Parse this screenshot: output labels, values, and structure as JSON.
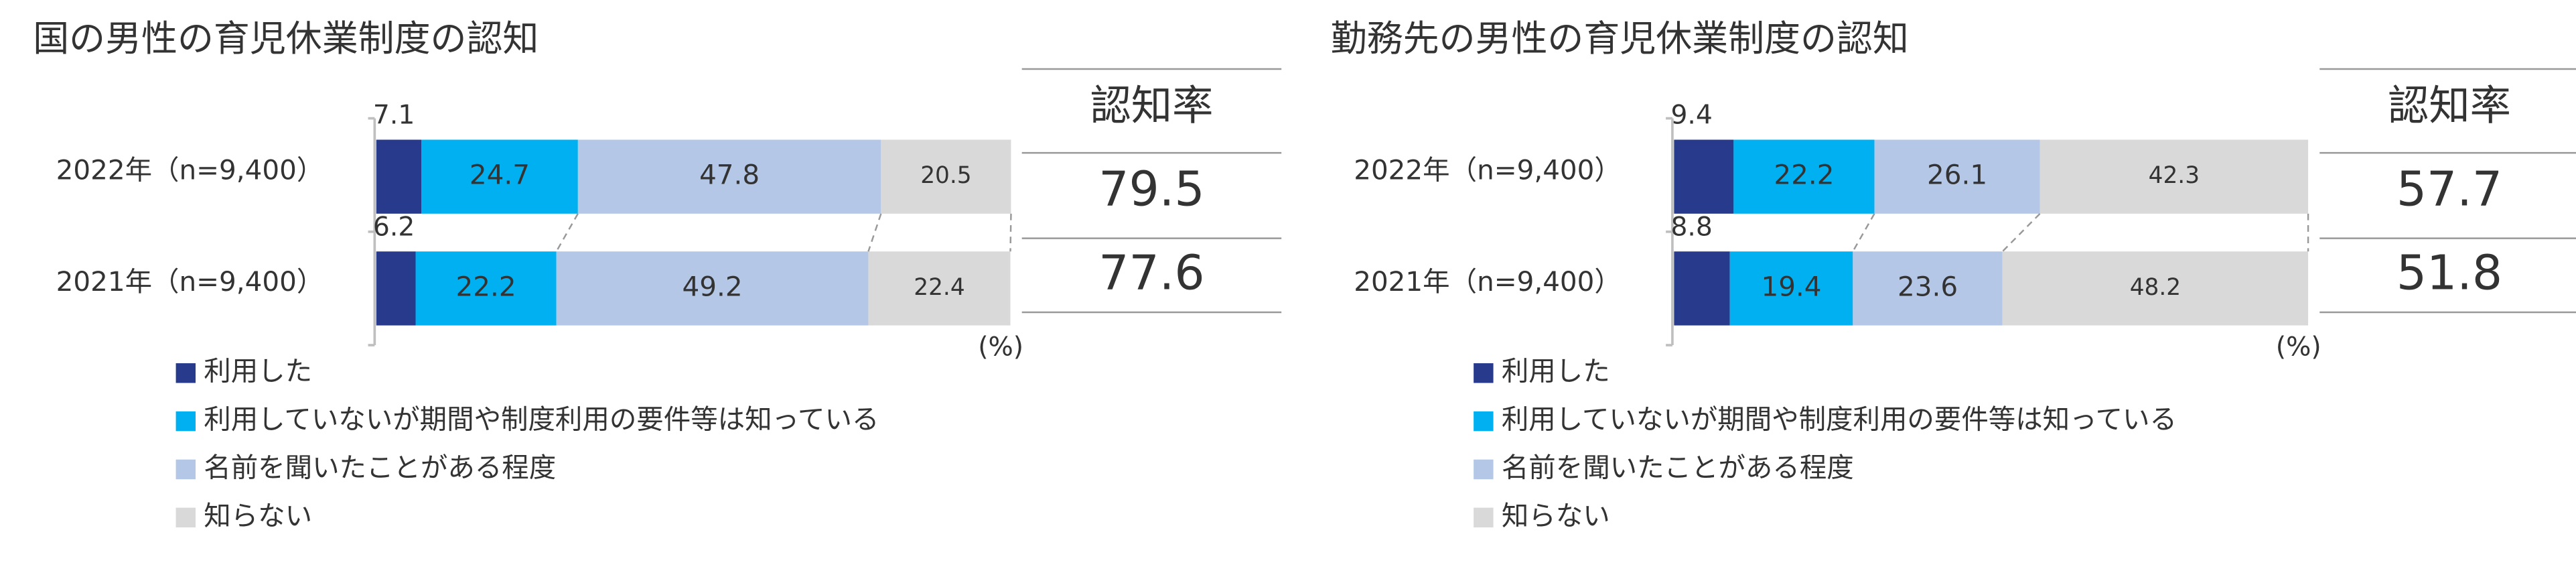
{
  "chart_data": [
    {
      "type": "bar",
      "orientation": "horizontal",
      "stacked": true,
      "title": "国の男性の育児休業制度の認知",
      "categories": [
        "2022年（n=9,400）",
        "2021年（n=9,400）"
      ],
      "series": [
        {
          "name": "利用した",
          "color": "#283a8c",
          "values": [
            7.1,
            6.2
          ]
        },
        {
          "name": "利用していないが期間や制度利用の要件等は知っている",
          "color": "#00b0f0",
          "values": [
            24.7,
            22.2
          ]
        },
        {
          "name": "名前を聞いたことがある程度",
          "color": "#b4c7e7",
          "values": [
            47.8,
            49.2
          ]
        },
        {
          "name": "知らない",
          "color": "#d9d9d9",
          "values": [
            20.5,
            22.4
          ]
        }
      ],
      "xlim": [
        0,
        100
      ],
      "unit_label": "(%)",
      "recognition": {
        "header": "認知率",
        "values": [
          79.5,
          77.6
        ]
      }
    },
    {
      "type": "bar",
      "orientation": "horizontal",
      "stacked": true,
      "title": "勤務先の男性の育児休業制度の認知",
      "categories": [
        "2022年（n=9,400）",
        "2021年（n=9,400）"
      ],
      "series": [
        {
          "name": "利用した",
          "color": "#283a8c",
          "values": [
            9.4,
            8.8
          ]
        },
        {
          "name": "利用していないが期間や制度利用の要件等は知っている",
          "color": "#00b0f0",
          "values": [
            22.2,
            19.4
          ]
        },
        {
          "name": "名前を聞いたことがある程度",
          "color": "#b4c7e7",
          "values": [
            26.1,
            23.6
          ]
        },
        {
          "name": "知らない",
          "color": "#d9d9d9",
          "values": [
            42.3,
            48.2
          ]
        }
      ],
      "xlim": [
        0,
        100
      ],
      "unit_label": "(%)",
      "recognition": {
        "header": "認知率",
        "values": [
          57.7,
          51.8
        ]
      }
    }
  ]
}
